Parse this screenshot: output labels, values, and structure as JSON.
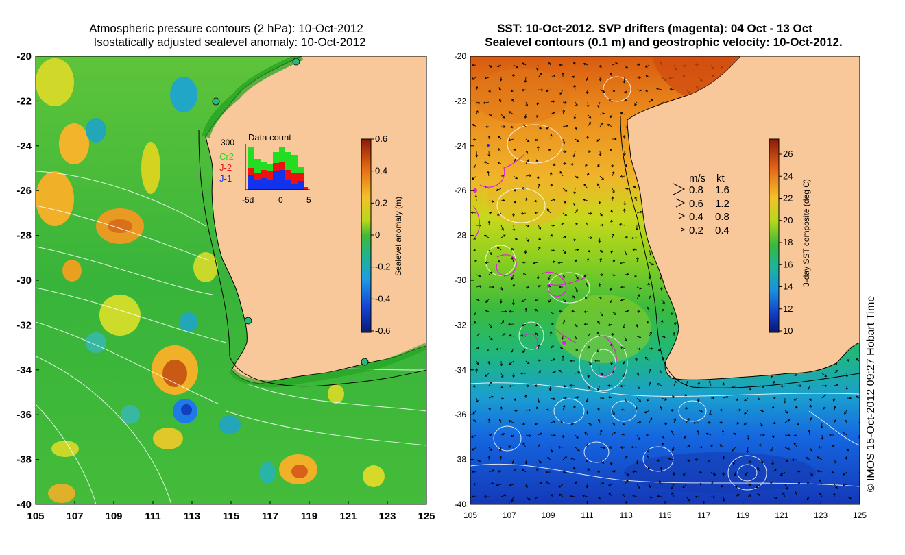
{
  "left_map": {
    "title_line1": "Atmospheric pressure contours (2 hPa): 10-Oct-2012",
    "title_line2": "Isostatically adjusted sealevel anomaly: 10-Oct-2012",
    "y_ticks": [
      "-20",
      "-22",
      "-24",
      "-26",
      "-28",
      "-30",
      "-32",
      "-34",
      "-36",
      "-38",
      "-40"
    ],
    "x_ticks": [
      "105",
      "107",
      "109",
      "111",
      "113",
      "115",
      "117",
      "119",
      "121",
      "123",
      "125"
    ],
    "colorbar": {
      "label": "Sealevel anomaly (m)",
      "ticks": [
        "0.6",
        "0.4",
        "0.2",
        "0",
        "-0.2",
        "-0.4",
        "-0.6"
      ],
      "range": [
        -0.6,
        0.6
      ]
    },
    "inset": {
      "title": "Data count",
      "y_max_label": "300",
      "legend": [
        {
          "name": "Cr2",
          "color": "#22dd22"
        },
        {
          "name": "J-2",
          "color": "#ee1111"
        },
        {
          "name": "J-1",
          "color": "#1133ee"
        }
      ],
      "x_labels": [
        "-5d",
        "0",
        "5"
      ]
    }
  },
  "right_map": {
    "title_line1": "SST: 10-Oct-2012. SVP drifters (magenta): 04 Oct - 13 Oct",
    "title_line2": "Sealevel contours (0.1 m) and geostrophic velocity: 10-Oct-2012.",
    "y_ticks": [
      "-20",
      "-22",
      "-24",
      "-26",
      "-28",
      "-30",
      "-32",
      "-34",
      "-36",
      "-38",
      "-40"
    ],
    "x_ticks": [
      "105",
      "107",
      "109",
      "111",
      "113",
      "115",
      "117",
      "119",
      "121",
      "123",
      "125"
    ],
    "colorbar": {
      "label": "3-day SST composite (deg C)",
      "ticks": [
        "26",
        "24",
        "22",
        "20",
        "18",
        "16",
        "14",
        "12",
        "10"
      ],
      "range": [
        10,
        27
      ]
    },
    "velocity_legend": {
      "header_ms": "m/s",
      "header_kt": "kt",
      "rows": [
        {
          "ms": "0.8",
          "kt": "1.6"
        },
        {
          "ms": "0.6",
          "kt": "1.2"
        },
        {
          "ms": "0.4",
          "kt": "0.8"
        },
        {
          "ms": "0.2",
          "kt": "0.4"
        }
      ]
    }
  },
  "credit": "© IMOS 15-Oct-2012 09:27 Hobart Time",
  "colors": {
    "land": "#f9c89a",
    "contour": "#ffffff",
    "drifter": "#dd22dd",
    "coast": "#000000"
  }
}
